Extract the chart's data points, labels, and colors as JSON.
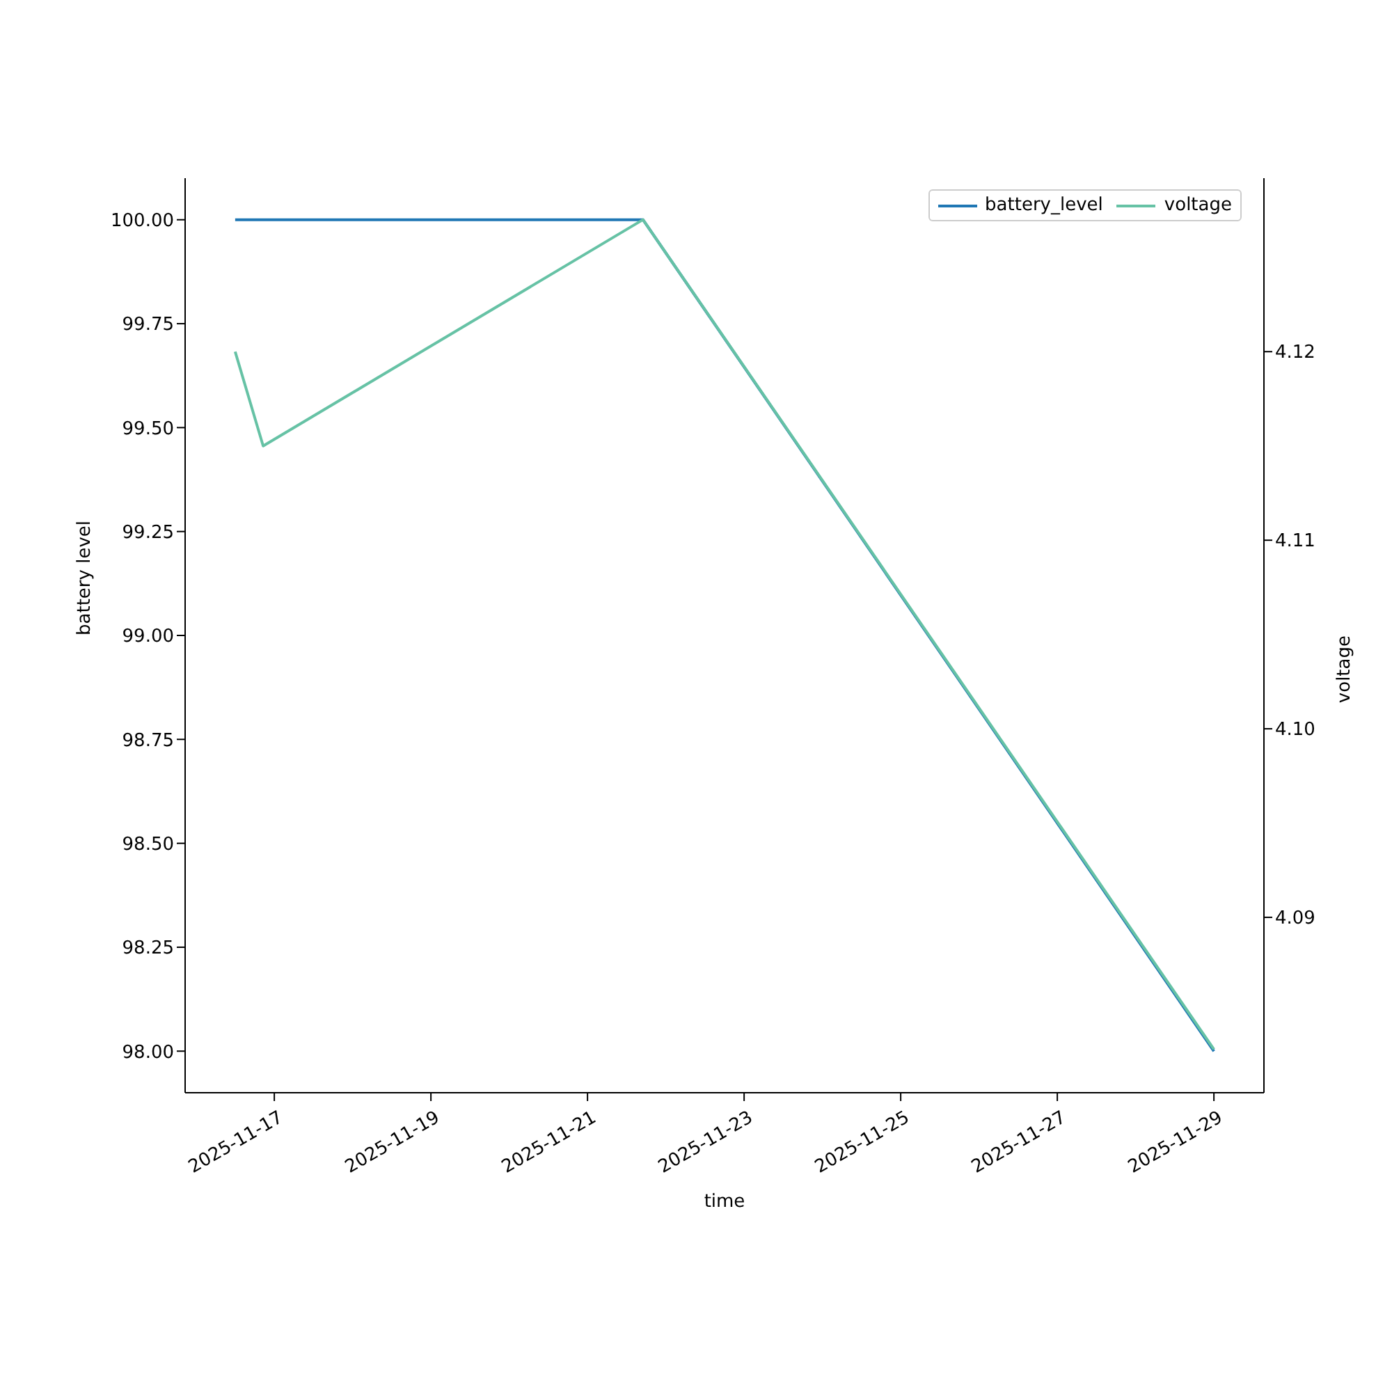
{
  "chart_data": {
    "type": "line",
    "xlabel": "time",
    "ylabel": "battery level",
    "y2label": "voltage",
    "x": [
      "2025-11-16T12:00",
      "2025-11-16T20:35",
      "2025-11-21T17:00",
      "2025-11-29T00:00"
    ],
    "series": [
      {
        "name": "battery_level",
        "color": "#1f77b4",
        "values": [
          100,
          100,
          100,
          98
        ]
      },
      {
        "name": "voltage",
        "color": "#66c2a5",
        "axis": "y2",
        "values": [
          4.12,
          4.115,
          4.127,
          4.083
        ]
      }
    ],
    "xlim": [
      "2025-11-15T20:40",
      "2025-11-29T15:20"
    ],
    "xticks": [
      "2025-11-17",
      "2025-11-19",
      "2025-11-21",
      "2025-11-23",
      "2025-11-25",
      "2025-11-27",
      "2025-11-29"
    ],
    "ylim": [
      97.9,
      100.1
    ],
    "yticks": [
      {
        "value": 98,
        "label": "98.00"
      },
      {
        "value": 98.25,
        "label": "98.25"
      },
      {
        "value": 98.5,
        "label": "98.50"
      },
      {
        "value": 98.75,
        "label": "98.75"
      },
      {
        "value": 99,
        "label": "99.00"
      },
      {
        "value": 99.25,
        "label": "99.25"
      },
      {
        "value": 99.5,
        "label": "99.50"
      },
      {
        "value": 99.75,
        "label": "99.75"
      },
      {
        "value": 100,
        "label": "100.00"
      }
    ],
    "y2lim": [
      4.0807,
      4.1292
    ],
    "y2ticks": [
      4.09,
      {
        "value": 4.1,
        "label": "4.10"
      },
      4.11,
      4.12
    ],
    "legend": "top right",
    "grid": false,
    "marker": "none",
    "line_style": "solid"
  }
}
